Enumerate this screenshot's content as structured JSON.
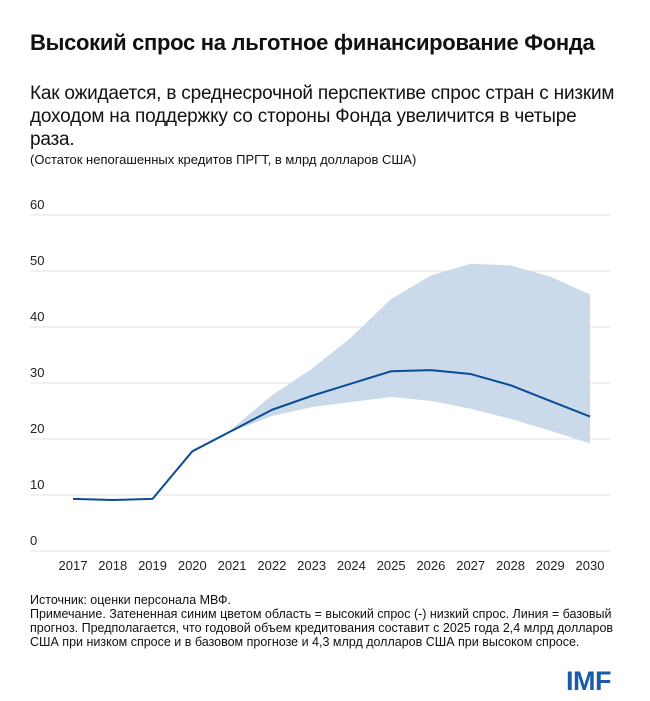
{
  "header": {
    "title": "Высокий спрос на льготное финансирование Фонда",
    "subtitle": "Как ожидается, в среднесрочной перспективе спрос стран с низким доходом на поддержку со стороны Фонда увеличится в четыре раза.",
    "units": "(Остаток непогашенных кредитов ПРГТ, в млрд долларов США)"
  },
  "chart_data": {
    "type": "line",
    "title": "",
    "xlabel": "",
    "ylabel": "",
    "x": [
      2017,
      2018,
      2019,
      2020,
      2021,
      2022,
      2023,
      2024,
      2025,
      2026,
      2027,
      2028,
      2029,
      2030
    ],
    "ylim": [
      0,
      60
    ],
    "yticks": [
      0,
      10,
      20,
      30,
      40,
      50,
      60
    ],
    "grid": true,
    "series": [
      {
        "role": "baseline-line",
        "color": "#0a4c95",
        "values": [
          9.3,
          9.1,
          9.3,
          17.8,
          21.5,
          25.2,
          27.7,
          29.9,
          32.1,
          32.3,
          31.6,
          29.6,
          26.8,
          24.0
        ]
      }
    ],
    "band": {
      "color": "#cadaea",
      "start_index": 4,
      "upper": [
        21.8,
        27.8,
        32.5,
        38.2,
        45.0,
        49.2,
        51.3,
        51.0,
        49.0,
        45.8
      ],
      "lower": [
        21.3,
        24.1,
        25.7,
        26.6,
        27.5,
        26.8,
        25.4,
        23.6,
        21.5,
        19.2
      ]
    }
  },
  "footer": {
    "source": "Источник: оценки персонала МВФ.",
    "note": "Примечание. Затененная синим цветом область = высокий спрос (-) низкий спрос. Линия = базовый прогноз. Предполагается, что годовой объем кредитования составит с 2025 года 2,4 млрд долларов США при низком спросе и в базовом прогнозе и 4,3 млрд долларов США при высоком спросе.",
    "logo": "IMF"
  }
}
